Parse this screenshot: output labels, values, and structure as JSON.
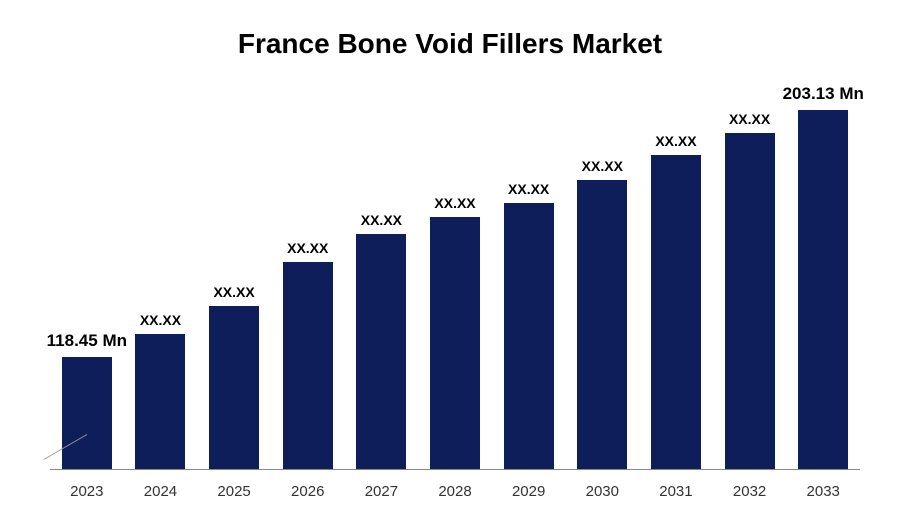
{
  "chart": {
    "type": "bar",
    "title": "France Bone Void Fillers Market",
    "title_fontsize": 28,
    "title_fontweight": 700,
    "title_color": "#000000",
    "background_color": "#ffffff",
    "bar_color": "#0e1e5b",
    "axis_color": "#888888",
    "label_color": "#000000",
    "xlabel_color": "#333333",
    "xlabel_fontsize": 15,
    "data_label_fontsize": 14,
    "data_label_large_fontsize": 17,
    "bar_width_pct": 68,
    "ylim": [
      0,
      330
    ],
    "categories": [
      "2023",
      "2024",
      "2025",
      "2026",
      "2027",
      "2028",
      "2029",
      "2030",
      "2031",
      "2032",
      "2033"
    ],
    "values": [
      100,
      120,
      145,
      185,
      210,
      225,
      237,
      258,
      280,
      300,
      320
    ],
    "value_labels": [
      "118.45 Mn",
      "XX.XX",
      "XX.XX",
      "XX.XX",
      "XX.XX",
      "XX.XX",
      "XX.XX",
      "XX.XX",
      "XX.XX",
      "XX.XX",
      "203.13 Mn"
    ],
    "label_is_large": [
      true,
      false,
      false,
      false,
      false,
      false,
      false,
      false,
      false,
      false,
      true
    ],
    "show_tick_line_at_index": 0
  }
}
